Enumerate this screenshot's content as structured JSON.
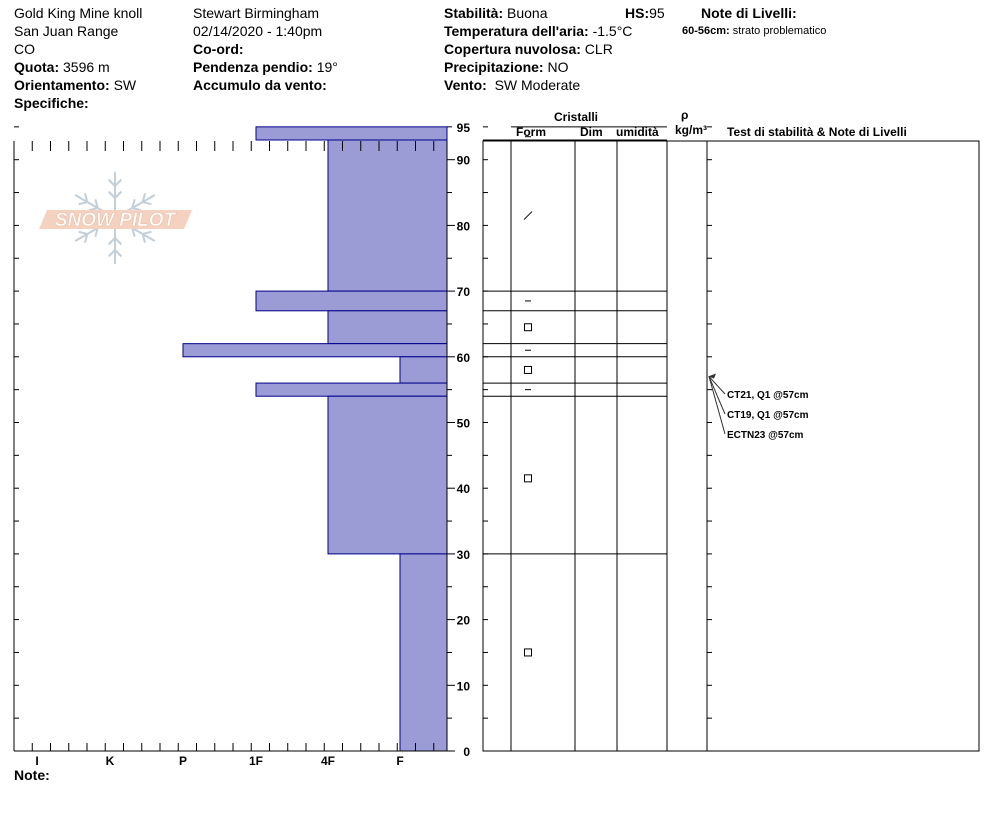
{
  "header": {
    "location": "Gold King Mine knoll",
    "range": "San Juan Range",
    "state": "CO",
    "elevation_label": "Quota:",
    "elevation_value": "3596 m",
    "aspect_label": "Orientamento:",
    "aspect_value": "SW",
    "specifics_label": "Specifiche:",
    "observer": "Stewart Birmingham",
    "datetime": "02/14/2020 - 1:40pm",
    "coords_label": "Co-ord:",
    "slope_label": "Pendenza pendio:",
    "slope_value": "19°",
    "wind_loading_label": "Accumulo da vento:",
    "stability_label": "Stabilità:",
    "stability_value": "Buona",
    "hs_label": "HS:",
    "hs_value": "95",
    "air_temp_label": "Temperatura dell'aria:",
    "air_temp_value": "-1.5°C",
    "cloud_label": "Copertura nuvolosa:",
    "cloud_value": "CLR",
    "precip_label": "Precipitazione:",
    "precip_value": "NO",
    "wind_label": "Vento:",
    "wind_value": "SW Moderate",
    "layer_notes_label": "Note di Livelli:",
    "layer_note_range": "60-56cm:",
    "layer_note_text": "strato problematico"
  },
  "logo_text": "SNOW PILOT",
  "notes_label": "Note:",
  "colors": {
    "bar_fill": "#9b9bd5",
    "bar_stroke": "#00008b",
    "logo_fill": "#f3cbb5",
    "logo_flake": "#b8c6d2"
  },
  "table_headers": {
    "cristalli": "Cristalli",
    "form": "Form",
    "dim": "Dim",
    "umidita": "umidità",
    "rho": "ρ",
    "kgm3": "kg/m³",
    "notes": "Test di stabilità & Note di Livelli"
  },
  "chart_data": {
    "type": "bar",
    "title": "",
    "xlabel": "",
    "ylabel": "",
    "hardness_categories": [
      "I",
      "K",
      "P",
      "1F",
      "4F",
      "F"
    ],
    "y_ticks": [
      0,
      10,
      20,
      30,
      40,
      50,
      60,
      70,
      80,
      90,
      95
    ],
    "ylim": [
      0,
      95
    ],
    "layers": [
      {
        "bottom": 93,
        "top": 95,
        "hardness": "1F"
      },
      {
        "bottom": 70,
        "top": 93,
        "hardness": "4F"
      },
      {
        "bottom": 67,
        "top": 70,
        "hardness": "1F"
      },
      {
        "bottom": 62,
        "top": 67,
        "hardness": "4F"
      },
      {
        "bottom": 60,
        "top": 62,
        "hardness": "P"
      },
      {
        "bottom": 56,
        "top": 60,
        "hardness": "F"
      },
      {
        "bottom": 54,
        "top": 56,
        "hardness": "1F"
      },
      {
        "bottom": 30,
        "top": 54,
        "hardness": "4F"
      },
      {
        "bottom": 0,
        "top": 30,
        "hardness": "F"
      }
    ],
    "layer_boundaries": [
      95,
      93,
      70,
      67,
      62,
      60,
      56,
      54,
      30,
      0
    ],
    "grain_forms": [
      {
        "depth": 93.5,
        "symbol": "–"
      },
      {
        "depth": 81.5,
        "symbol": "/"
      },
      {
        "depth": 68.5,
        "symbol": "–"
      },
      {
        "depth": 64.5,
        "symbol": "□"
      },
      {
        "depth": 61,
        "symbol": "–"
      },
      {
        "depth": 58,
        "symbol": "□"
      },
      {
        "depth": 55,
        "symbol": "–"
      },
      {
        "depth": 41.5,
        "symbol": "□"
      },
      {
        "depth": 15,
        "symbol": "□"
      }
    ],
    "stability_tests": [
      "CT21, Q1 @57cm",
      "CT19, Q1 @57cm",
      "ECTN23 @57cm"
    ],
    "test_depth": 57
  }
}
